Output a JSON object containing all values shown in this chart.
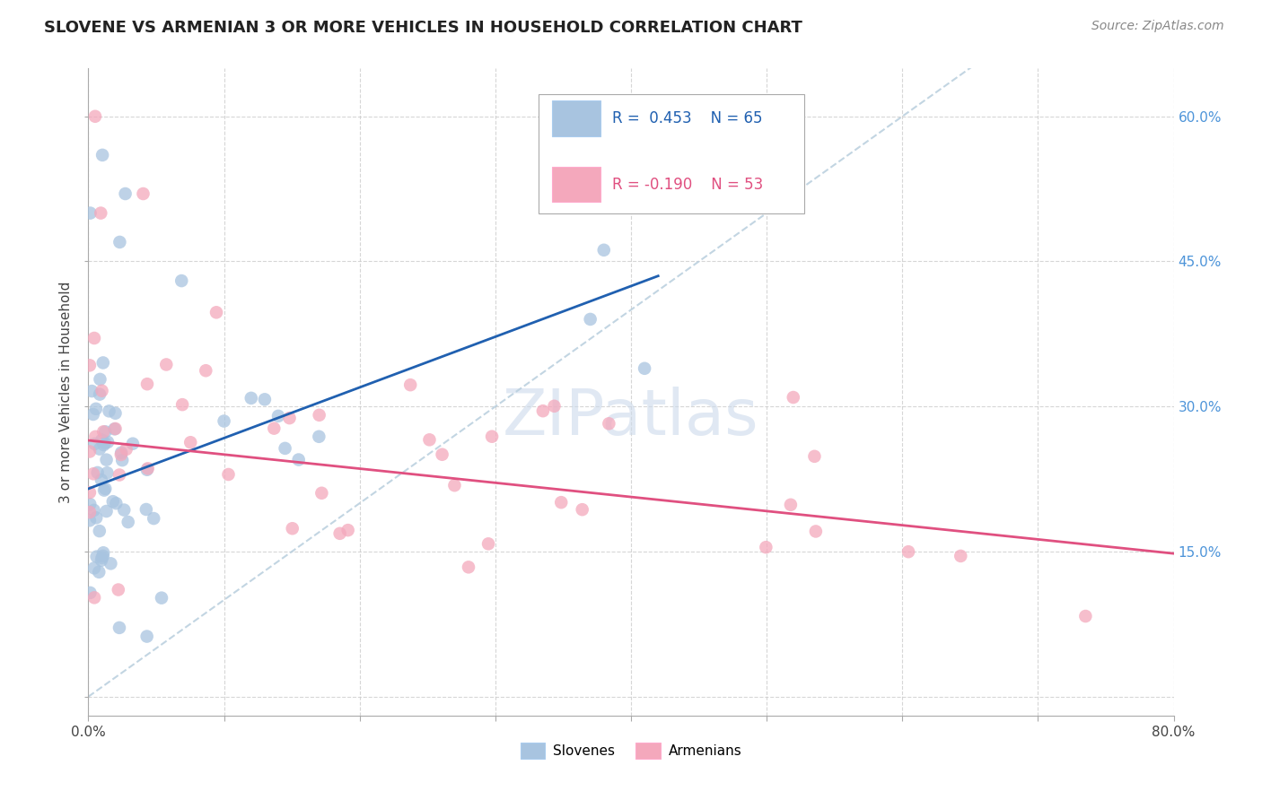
{
  "title": "SLOVENE VS ARMENIAN 3 OR MORE VEHICLES IN HOUSEHOLD CORRELATION CHART",
  "source": "Source: ZipAtlas.com",
  "ylabel": "3 or more Vehicles in Household",
  "xlim": [
    0.0,
    0.8
  ],
  "ylim": [
    -0.02,
    0.65
  ],
  "yticks": [
    0.0,
    0.15,
    0.3,
    0.45,
    0.6
  ],
  "right_ytick_labels": [
    "",
    "15.0%",
    "30.0%",
    "45.0%",
    "60.0%"
  ],
  "xtick_left_label": "0.0%",
  "xtick_right_label": "80.0%",
  "slovene_color": "#a8c4e0",
  "armenian_color": "#f4a8bc",
  "line_slovene_color": "#2060b0",
  "line_armenian_color": "#e05080",
  "diag_color": "#b8cedd",
  "R_slovene": 0.453,
  "N_slovene": 65,
  "R_armenian": -0.19,
  "N_armenian": 53,
  "slovene_line_x0": 0.0,
  "slovene_line_y0": 0.215,
  "slovene_line_x1": 0.42,
  "slovene_line_y1": 0.435,
  "armenian_line_x0": 0.0,
  "armenian_line_y0": 0.265,
  "armenian_line_x1": 0.8,
  "armenian_line_y1": 0.148,
  "background_color": "#ffffff",
  "grid_color": "#cccccc",
  "watermark_text": "ZIPatlas",
  "watermark_color": "#ccdaeb"
}
